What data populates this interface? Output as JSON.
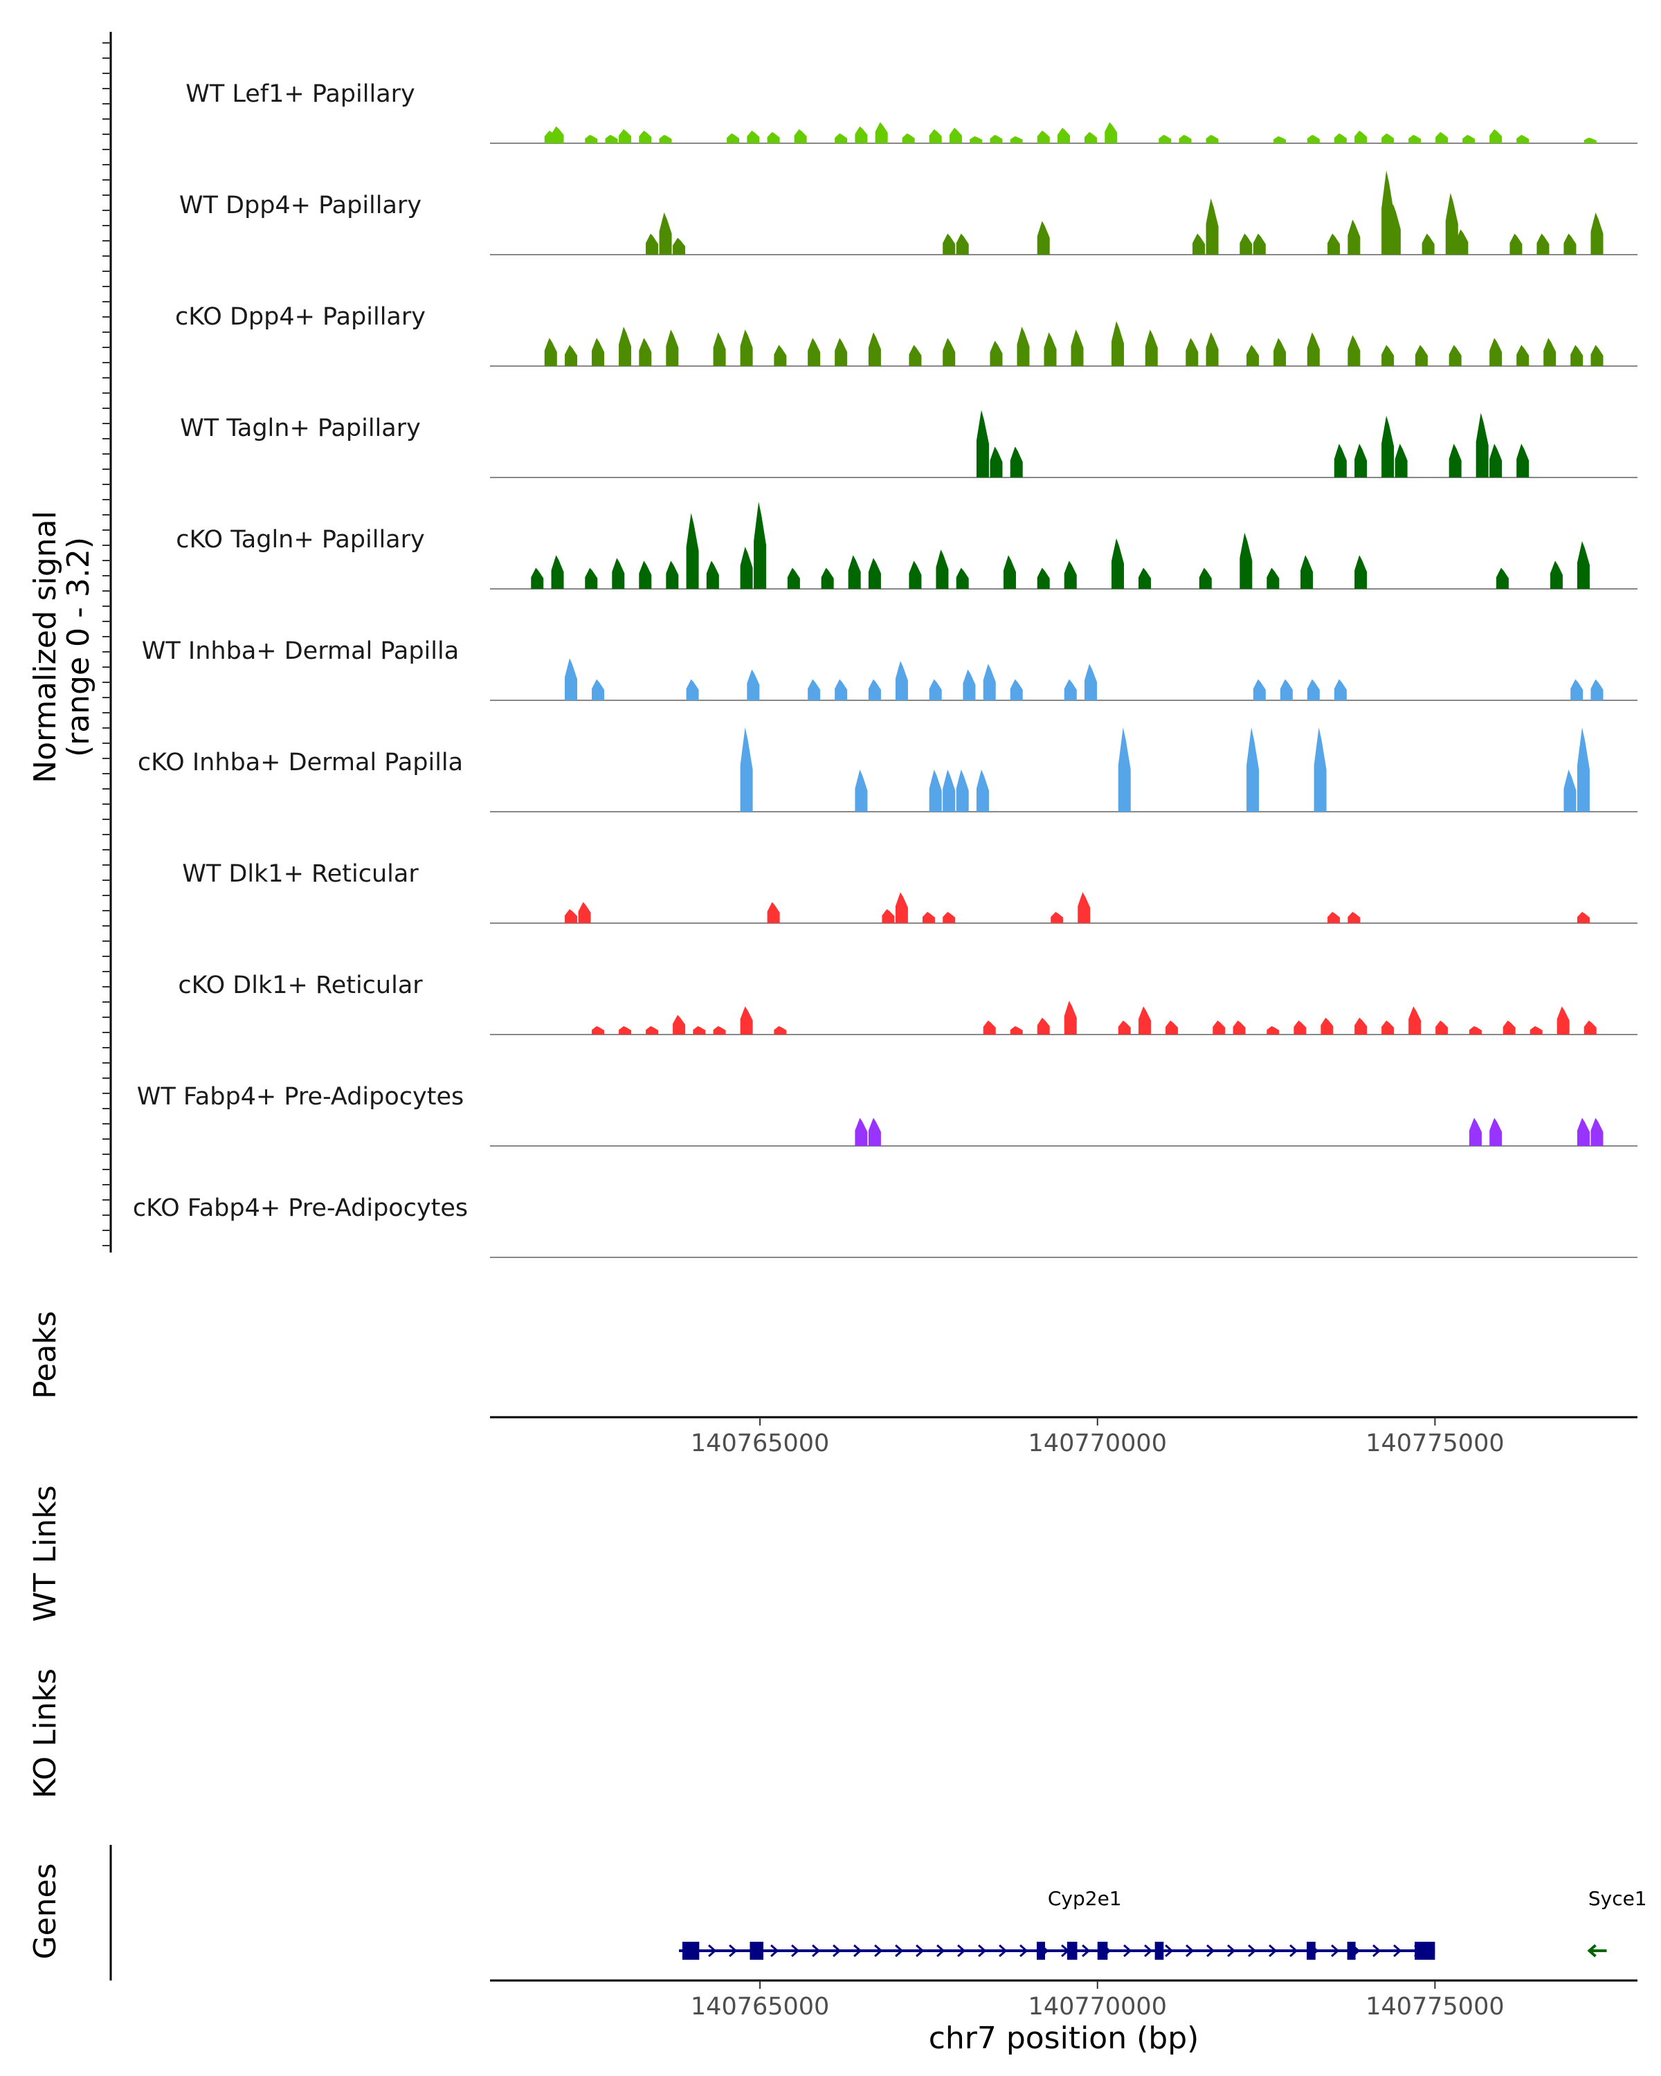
{
  "chart_data": {
    "type": "genome-coverage",
    "chromosome": "chr7",
    "xlabel": "chr7 position (bp)",
    "xlim": [
      140761000,
      140778000
    ],
    "x_ticks": [
      140765000,
      140770000,
      140775000
    ],
    "x_tick_labels": [
      "140765000",
      "140770000",
      "140775000"
    ],
    "coverage_ylabel_line1": "Normalized signal",
    "coverage_ylabel_line2": "(range 0 - 3.2)",
    "signal_range": [
      0,
      3.2
    ],
    "panel_labels": {
      "peaks": "Peaks",
      "wt_links": "WT Links",
      "ko_links": "KO Links",
      "genes": "Genes"
    },
    "tracks": [
      {
        "label": "WT Lef1+ Papillary",
        "color": "#66cc00",
        "peaks": [
          [
            140761900,
            0.45
          ],
          [
            140762000,
            0.6
          ],
          [
            140762500,
            0.3
          ],
          [
            140762800,
            0.3
          ],
          [
            140763000,
            0.5
          ],
          [
            140763300,
            0.45
          ],
          [
            140763600,
            0.3
          ],
          [
            140764600,
            0.35
          ],
          [
            140764900,
            0.45
          ],
          [
            140765200,
            0.4
          ],
          [
            140765600,
            0.5
          ],
          [
            140766200,
            0.35
          ],
          [
            140766500,
            0.6
          ],
          [
            140766800,
            0.75
          ],
          [
            140767200,
            0.35
          ],
          [
            140767600,
            0.5
          ],
          [
            140767900,
            0.55
          ],
          [
            140768200,
            0.25
          ],
          [
            140768500,
            0.3
          ],
          [
            140768800,
            0.25
          ],
          [
            140769200,
            0.45
          ],
          [
            140769500,
            0.55
          ],
          [
            140769900,
            0.4
          ],
          [
            140770200,
            0.75
          ],
          [
            140771000,
            0.3
          ],
          [
            140771300,
            0.3
          ],
          [
            140771700,
            0.3
          ],
          [
            140772700,
            0.25
          ],
          [
            140773200,
            0.3
          ],
          [
            140773600,
            0.35
          ],
          [
            140773900,
            0.45
          ],
          [
            140774300,
            0.35
          ],
          [
            140774700,
            0.3
          ],
          [
            140775100,
            0.4
          ],
          [
            140775500,
            0.3
          ],
          [
            140775900,
            0.5
          ],
          [
            140776300,
            0.3
          ],
          [
            140777300,
            0.2
          ]
        ]
      },
      {
        "label": "WT Dpp4+ Papillary",
        "color": "#4d8c00",
        "peaks": [
          [
            140763400,
            0.75
          ],
          [
            140763600,
            1.5
          ],
          [
            140763800,
            0.6
          ],
          [
            140767800,
            0.75
          ],
          [
            140768000,
            0.75
          ],
          [
            140769200,
            1.2
          ],
          [
            140771500,
            0.75
          ],
          [
            140771700,
            2.0
          ],
          [
            140772200,
            0.75
          ],
          [
            140772400,
            0.75
          ],
          [
            140773500,
            0.75
          ],
          [
            140773800,
            1.25
          ],
          [
            140774300,
            3.0
          ],
          [
            140774400,
            1.8
          ],
          [
            140774900,
            0.75
          ],
          [
            140775250,
            2.2
          ],
          [
            140775400,
            0.9
          ],
          [
            140776200,
            0.75
          ],
          [
            140776600,
            0.75
          ],
          [
            140777000,
            0.75
          ],
          [
            140777400,
            1.5
          ]
        ]
      },
      {
        "label": "cKO Dpp4+ Papillary",
        "color": "#4d8c00",
        "peaks": [
          [
            140761900,
            1.0
          ],
          [
            140762200,
            0.75
          ],
          [
            140762600,
            1.0
          ],
          [
            140763000,
            1.4
          ],
          [
            140763300,
            1.0
          ],
          [
            140763700,
            1.3
          ],
          [
            140764400,
            1.2
          ],
          [
            140764800,
            1.3
          ],
          [
            140765300,
            0.75
          ],
          [
            140765800,
            1.0
          ],
          [
            140766200,
            1.0
          ],
          [
            140766700,
            1.2
          ],
          [
            140767300,
            0.75
          ],
          [
            140767800,
            1.0
          ],
          [
            140768500,
            0.9
          ],
          [
            140768900,
            1.4
          ],
          [
            140769300,
            1.2
          ],
          [
            140769700,
            1.3
          ],
          [
            140770300,
            1.6
          ],
          [
            140770800,
            1.3
          ],
          [
            140771400,
            1.0
          ],
          [
            140771700,
            1.2
          ],
          [
            140772300,
            0.75
          ],
          [
            140772700,
            1.0
          ],
          [
            140773200,
            1.2
          ],
          [
            140773800,
            1.1
          ],
          [
            140774300,
            0.75
          ],
          [
            140774800,
            0.75
          ],
          [
            140775300,
            0.75
          ],
          [
            140775900,
            1.0
          ],
          [
            140776300,
            0.75
          ],
          [
            140776700,
            1.0
          ],
          [
            140777100,
            0.75
          ],
          [
            140777400,
            0.75
          ]
        ]
      },
      {
        "label": "WT Tagln+ Papillary",
        "color": "#006600",
        "peaks": [
          [
            140768300,
            2.4
          ],
          [
            140768500,
            1.1
          ],
          [
            140768800,
            1.1
          ],
          [
            140773600,
            1.2
          ],
          [
            140773900,
            1.2
          ],
          [
            140774300,
            2.2
          ],
          [
            140774500,
            1.2
          ],
          [
            140775300,
            1.2
          ],
          [
            140775700,
            2.3
          ],
          [
            140775900,
            1.2
          ],
          [
            140776300,
            1.2
          ]
        ]
      },
      {
        "label": "cKO Tagln+ Papillary",
        "color": "#006600",
        "peaks": [
          [
            140761700,
            0.75
          ],
          [
            140762000,
            1.2
          ],
          [
            140762500,
            0.75
          ],
          [
            140762900,
            1.1
          ],
          [
            140763300,
            1.0
          ],
          [
            140763700,
            1.0
          ],
          [
            140764000,
            2.7
          ],
          [
            140764300,
            1.0
          ],
          [
            140764800,
            1.5
          ],
          [
            140765000,
            3.1
          ],
          [
            140765500,
            0.75
          ],
          [
            140766000,
            0.75
          ],
          [
            140766400,
            1.2
          ],
          [
            140766700,
            1.1
          ],
          [
            140767300,
            1.0
          ],
          [
            140767700,
            1.4
          ],
          [
            140768000,
            0.75
          ],
          [
            140768700,
            1.2
          ],
          [
            140769200,
            0.75
          ],
          [
            140769600,
            1.0
          ],
          [
            140770300,
            1.8
          ],
          [
            140770700,
            0.75
          ],
          [
            140771600,
            0.75
          ],
          [
            140772200,
            2.0
          ],
          [
            140772600,
            0.75
          ],
          [
            140773100,
            1.2
          ],
          [
            140773900,
            1.2
          ],
          [
            140776000,
            0.75
          ],
          [
            140776800,
            1.0
          ],
          [
            140777200,
            1.7
          ]
        ]
      },
      {
        "label": "WT Inhba+ Dermal Papilla",
        "color": "#56a5e8",
        "peaks": [
          [
            140762200,
            1.5
          ],
          [
            140762600,
            0.75
          ],
          [
            140764000,
            0.75
          ],
          [
            140764900,
            1.1
          ],
          [
            140765800,
            0.75
          ],
          [
            140766200,
            0.75
          ],
          [
            140766700,
            0.75
          ],
          [
            140767100,
            1.4
          ],
          [
            140767600,
            0.75
          ],
          [
            140768100,
            1.1
          ],
          [
            140768400,
            1.3
          ],
          [
            140768800,
            0.75
          ],
          [
            140769600,
            0.75
          ],
          [
            140769900,
            1.3
          ],
          [
            140772400,
            0.75
          ],
          [
            140772800,
            0.75
          ],
          [
            140773200,
            0.75
          ],
          [
            140773600,
            0.75
          ],
          [
            140777100,
            0.75
          ],
          [
            140777400,
            0.75
          ]
        ]
      },
      {
        "label": "cKO Inhba+ Dermal Papilla",
        "color": "#56a5e8",
        "peaks": [
          [
            140764800,
            3.0
          ],
          [
            140766500,
            1.5
          ],
          [
            140767600,
            1.5
          ],
          [
            140767800,
            1.5
          ],
          [
            140768000,
            1.5
          ],
          [
            140768300,
            1.5
          ],
          [
            140770400,
            3.0
          ],
          [
            140772300,
            3.0
          ],
          [
            140773300,
            3.0
          ],
          [
            140777000,
            1.5
          ],
          [
            140777200,
            3.0
          ]
        ]
      },
      {
        "label": "WT Dlk1+ Reticular",
        "color": "#ff3333",
        "peaks": [
          [
            140762200,
            0.5
          ],
          [
            140762400,
            0.75
          ],
          [
            140765200,
            0.75
          ],
          [
            140766900,
            0.5
          ],
          [
            140767100,
            1.1
          ],
          [
            140767500,
            0.4
          ],
          [
            140767800,
            0.4
          ],
          [
            140769400,
            0.4
          ],
          [
            140769800,
            1.1
          ],
          [
            140773500,
            0.4
          ],
          [
            140773800,
            0.4
          ],
          [
            140777200,
            0.4
          ]
        ]
      },
      {
        "label": "cKO Dlk1+ Reticular",
        "color": "#ff3333",
        "peaks": [
          [
            140762600,
            0.3
          ],
          [
            140763000,
            0.3
          ],
          [
            140763400,
            0.3
          ],
          [
            140763800,
            0.7
          ],
          [
            140764100,
            0.3
          ],
          [
            140764400,
            0.3
          ],
          [
            140764800,
            1.0
          ],
          [
            140765300,
            0.3
          ],
          [
            140768400,
            0.5
          ],
          [
            140768800,
            0.3
          ],
          [
            140769200,
            0.6
          ],
          [
            140769600,
            1.2
          ],
          [
            140770400,
            0.5
          ],
          [
            140770700,
            1.0
          ],
          [
            140771100,
            0.5
          ],
          [
            140771800,
            0.5
          ],
          [
            140772100,
            0.5
          ],
          [
            140772600,
            0.3
          ],
          [
            140773000,
            0.5
          ],
          [
            140773400,
            0.6
          ],
          [
            140773900,
            0.6
          ],
          [
            140774300,
            0.5
          ],
          [
            140774700,
            1.0
          ],
          [
            140775100,
            0.5
          ],
          [
            140775600,
            0.3
          ],
          [
            140776100,
            0.5
          ],
          [
            140776500,
            0.3
          ],
          [
            140776900,
            1.0
          ],
          [
            140777300,
            0.5
          ]
        ]
      },
      {
        "label": "WT Fabp4+ Pre-Adipocytes",
        "color": "#9933ff",
        "peaks": [
          [
            140766500,
            1.0
          ],
          [
            140766700,
            1.0
          ],
          [
            140775600,
            1.0
          ],
          [
            140775900,
            1.0
          ],
          [
            140777200,
            1.0
          ],
          [
            140777400,
            1.0
          ]
        ]
      },
      {
        "label": "cKO Fabp4+ Pre-Adipocytes",
        "color": "#9933ff",
        "peaks": []
      }
    ],
    "genes": [
      {
        "name": "Cyp2e1",
        "strand": "+",
        "start": 140763800,
        "end": 140775000,
        "color": "#000080",
        "exons": [
          [
            140763850,
            140764100
          ],
          [
            140764850,
            140765050
          ],
          [
            140769100,
            140769200
          ],
          [
            140769550,
            140769700
          ],
          [
            140770000,
            140770150
          ],
          [
            140770850,
            140770980
          ],
          [
            140773100,
            140773230
          ],
          [
            140773700,
            140773820
          ],
          [
            140774700,
            140775000
          ]
        ]
      },
      {
        "name": "Syce1",
        "strand": "-",
        "start": 140777300,
        "end": 140777500,
        "color": "#006400",
        "exons": []
      }
    ]
  }
}
